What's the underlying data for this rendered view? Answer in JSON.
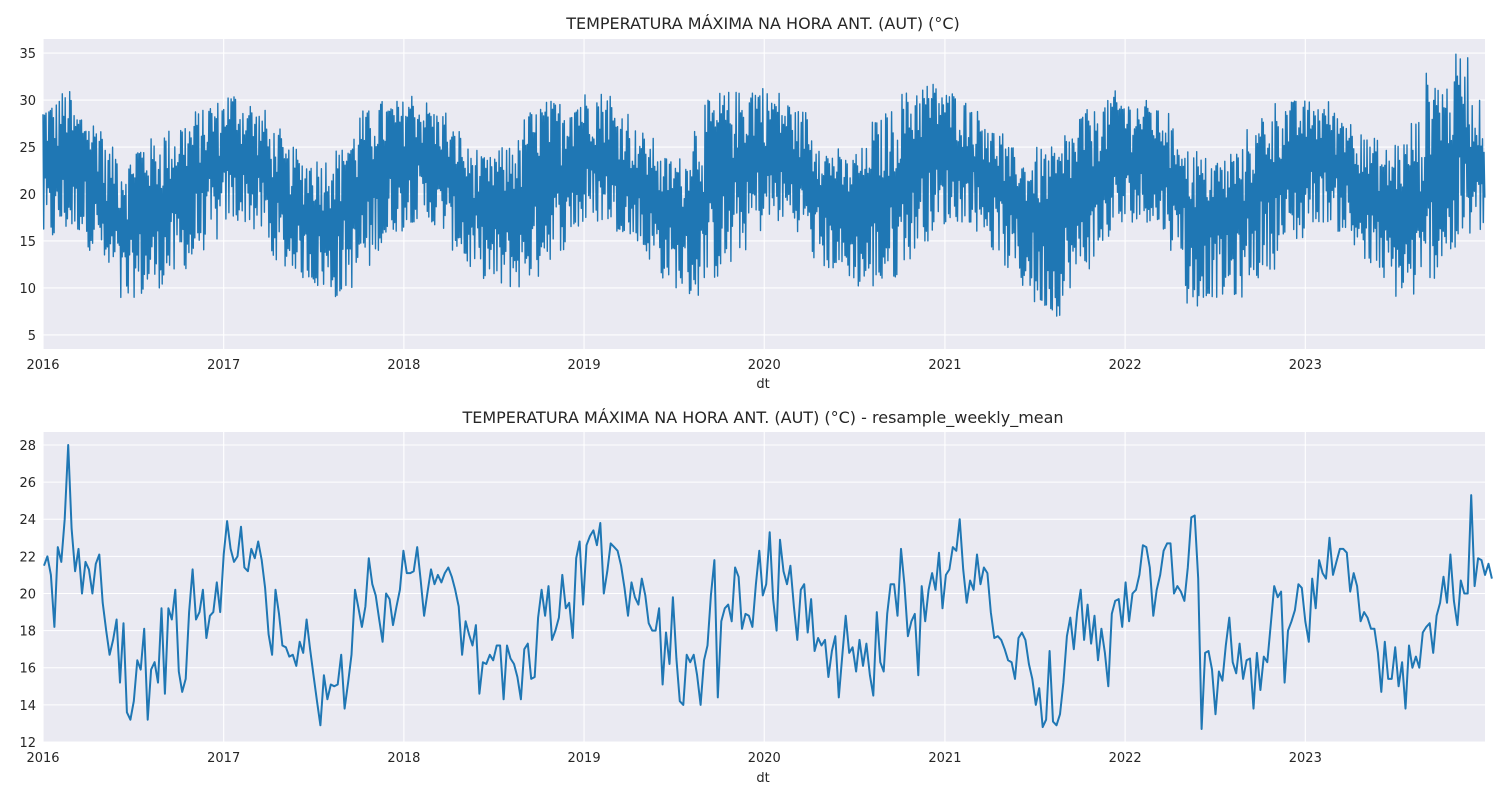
{
  "colors": {
    "line": "#1f77b4",
    "plot_background": "#eaeaf2",
    "grid": "#ffffff",
    "text": "#262626"
  },
  "chart_data": [
    {
      "type": "line",
      "title": "TEMPERATURA MÁXIMA NA HORA ANT. (AUT) (°C)",
      "xlabel": "dt",
      "ylabel": "",
      "x_range": [
        "2016-01-01",
        "2023-12-31"
      ],
      "ylim": [
        3.5,
        36.5
      ],
      "x_tick_labels": [
        "2016",
        "2017",
        "2018",
        "2019",
        "2020",
        "2021",
        "2022",
        "2023"
      ],
      "y_ticks": [
        5,
        10,
        15,
        20,
        25,
        30,
        35
      ],
      "grid": true,
      "legend": "none",
      "series": [
        {
          "frequency": "hourly",
          "note_on_values": "dense hourly series; seasonal envelope shown as monthly typical minimum and maximum",
          "months": [
            "2016-01",
            "2016-02",
            "2016-03",
            "2016-04",
            "2016-05",
            "2016-06",
            "2016-07",
            "2016-08",
            "2016-09",
            "2016-10",
            "2016-11",
            "2016-12",
            "2017-01",
            "2017-02",
            "2017-03",
            "2017-04",
            "2017-05",
            "2017-06",
            "2017-07",
            "2017-08",
            "2017-09",
            "2017-10",
            "2017-11",
            "2017-12",
            "2018-01",
            "2018-02",
            "2018-03",
            "2018-04",
            "2018-05",
            "2018-06",
            "2018-07",
            "2018-08",
            "2018-09",
            "2018-10",
            "2018-11",
            "2018-12",
            "2019-01",
            "2019-02",
            "2019-03",
            "2019-04",
            "2019-05",
            "2019-06",
            "2019-07",
            "2019-08",
            "2019-09",
            "2019-10",
            "2019-11",
            "2019-12",
            "2020-01",
            "2020-02",
            "2020-03",
            "2020-04",
            "2020-05",
            "2020-06",
            "2020-07",
            "2020-08",
            "2020-09",
            "2020-10",
            "2020-11",
            "2020-12",
            "2021-01",
            "2021-02",
            "2021-03",
            "2021-04",
            "2021-05",
            "2021-06",
            "2021-07",
            "2021-08",
            "2021-09",
            "2021-10",
            "2021-11",
            "2021-12",
            "2022-01",
            "2022-02",
            "2022-03",
            "2022-04",
            "2022-05",
            "2022-06",
            "2022-07",
            "2022-08",
            "2022-09",
            "2022-10",
            "2022-11",
            "2022-12",
            "2023-01",
            "2023-02",
            "2023-03",
            "2023-04",
            "2023-05",
            "2023-06",
            "2023-07",
            "2023-08",
            "2023-09",
            "2023-10",
            "2023-11",
            "2023-12"
          ],
          "monthly_min": [
            15,
            16,
            16,
            14,
            11,
            8,
            9,
            10,
            11,
            12,
            14,
            15,
            17,
            17,
            16,
            13,
            12,
            11,
            10,
            9,
            10,
            12,
            14,
            16,
            17,
            17,
            16,
            14,
            12,
            11,
            10,
            10,
            11,
            13,
            14,
            16,
            17,
            17,
            16,
            15,
            13,
            11,
            10,
            9,
            11,
            12,
            14,
            16,
            17,
            17,
            16,
            13,
            12,
            11,
            10,
            10,
            11,
            13,
            15,
            16,
            17,
            17,
            16,
            14,
            12,
            10,
            8,
            7,
            10,
            12,
            14,
            16,
            17,
            17,
            16,
            14,
            8,
            9,
            9,
            9,
            11,
            12,
            14,
            15,
            17,
            17,
            16,
            14,
            12,
            10,
            9,
            9,
            11,
            13,
            15,
            16
          ],
          "monthly_max": [
            30,
            31,
            29,
            28,
            25,
            24,
            26,
            26,
            27,
            28,
            29,
            30,
            31,
            30,
            29,
            27,
            25,
            24,
            24,
            25,
            27,
            29,
            30,
            30,
            31,
            30,
            29,
            27,
            25,
            24,
            25,
            26,
            29,
            30,
            30,
            31,
            31,
            31,
            29,
            27,
            26,
            24,
            24,
            28,
            30,
            31,
            31,
            32,
            31,
            30,
            29,
            27,
            25,
            24,
            25,
            28,
            29,
            31,
            32,
            32,
            31,
            30,
            29,
            27,
            25,
            24,
            25,
            25,
            27,
            29,
            30,
            31,
            30,
            30,
            29,
            27,
            25,
            24,
            24,
            25,
            27,
            29,
            30,
            30,
            30,
            30,
            29,
            28,
            26,
            25,
            26,
            28,
            33,
            32,
            35,
            30
          ]
        }
      ]
    },
    {
      "type": "line",
      "title": "TEMPERATURA MÁXIMA NA HORA ANT. (AUT) (°C) - resample_weekly_mean",
      "xlabel": "dt",
      "ylabel": "",
      "x_range": [
        "2016-01-01",
        "2023-12-31"
      ],
      "ylim": [
        12,
        28.7
      ],
      "x_tick_labels": [
        "2016",
        "2017",
        "2018",
        "2019",
        "2020",
        "2021",
        "2022",
        "2023"
      ],
      "y_ticks": [
        12,
        14,
        16,
        18,
        20,
        22,
        24,
        26,
        28
      ],
      "grid": true,
      "legend": "none",
      "series": [
        {
          "frequency": "weekly",
          "start": "2016-01-03",
          "step_days": 7,
          "values": [
            21.5,
            22.0,
            21.0,
            18.2,
            22.5,
            21.7,
            24.0,
            28.0,
            23.5,
            21.2,
            22.4,
            20.0,
            21.7,
            21.3,
            20.0,
            21.6,
            22.1,
            19.5,
            18.0,
            16.7,
            17.5,
            18.6,
            15.2,
            18.4,
            13.6,
            13.2,
            14.2,
            16.4,
            15.9,
            18.1,
            13.2,
            15.9,
            16.3,
            15.2,
            19.2,
            14.6,
            19.2,
            18.6,
            20.2,
            15.8,
            14.7,
            15.4,
            19.0,
            21.3,
            18.6,
            19.0,
            20.2,
            17.6,
            18.8,
            19.0,
            20.6,
            19.0,
            22.1,
            23.9,
            22.4,
            21.7,
            22.0,
            23.6,
            21.4,
            21.2,
            22.4,
            21.9,
            22.8,
            21.8,
            20.3,
            17.8,
            16.7,
            20.2,
            18.9,
            17.2,
            17.1,
            16.6,
            16.7,
            16.1,
            17.4,
            16.8,
            18.6,
            17.0,
            15.6,
            14.2,
            12.9,
            15.6,
            14.3,
            15.1,
            15.0,
            15.1,
            16.7,
            13.8,
            15.2,
            16.7,
            20.2,
            19.2,
            18.2,
            19.3,
            21.9,
            20.5,
            19.9,
            18.6,
            17.4,
            20.0,
            19.7,
            18.3,
            19.3,
            20.2,
            22.3,
            21.1,
            21.1,
            21.2,
            22.5,
            20.7,
            18.8,
            20.1,
            21.3,
            20.5,
            21.0,
            20.6,
            21.1,
            21.4,
            20.9,
            20.2,
            19.3,
            16.7,
            18.5,
            17.8,
            17.2,
            18.3,
            14.6,
            16.3,
            16.2,
            16.7,
            16.4,
            17.2,
            17.2,
            14.3,
            17.2,
            16.5,
            16.2,
            15.5,
            14.3,
            17.0,
            17.3,
            15.4,
            15.5,
            18.7,
            20.2,
            18.8,
            20.4,
            17.5,
            18.0,
            18.7,
            21.0,
            19.2,
            19.5,
            17.6,
            21.9,
            22.8,
            19.4,
            22.6,
            23.1,
            23.4,
            22.6,
            23.8,
            20.0,
            21.2,
            22.7,
            22.5,
            22.3,
            21.5,
            20.3,
            18.8,
            20.6,
            19.8,
            19.4,
            20.8,
            19.9,
            18.4,
            18.0,
            18.0,
            19.2,
            15.1,
            17.9,
            16.2,
            19.8,
            16.5,
            14.2,
            14.0,
            16.7,
            16.3,
            16.7,
            15.6,
            14.0,
            16.4,
            17.2,
            19.9,
            21.8,
            14.4,
            18.5,
            19.2,
            19.4,
            18.5,
            21.4,
            20.9,
            18.1,
            18.9,
            18.8,
            18.2,
            20.5,
            22.3,
            19.9,
            20.5,
            23.3,
            19.7,
            18.0,
            22.9,
            21.2,
            20.5,
            21.5,
            19.3,
            17.5,
            20.2,
            20.5,
            17.9,
            19.7,
            16.9,
            17.6,
            17.2,
            17.5,
            15.5,
            16.9,
            17.7,
            14.4,
            16.6,
            18.8,
            16.8,
            17.1,
            15.8,
            17.5,
            16.1,
            17.3,
            15.6,
            14.5,
            19.0,
            16.3,
            15.8,
            18.9,
            20.5,
            20.5,
            18.8,
            22.4,
            20.5,
            17.7,
            18.5,
            18.9,
            15.6,
            20.4,
            18.5,
            20.2,
            21.1,
            20.2,
            22.2,
            19.2,
            21.0,
            21.3,
            22.5,
            22.3,
            24.0,
            21.3,
            19.5,
            20.7,
            20.2,
            22.1,
            20.5,
            21.4,
            21.1,
            19.0,
            17.6,
            17.7,
            17.5,
            17.0,
            16.4,
            16.3,
            15.4,
            17.6,
            17.9,
            17.5,
            16.2,
            15.4,
            14.0,
            14.9,
            12.8,
            13.2,
            16.9,
            13.1,
            12.9,
            13.5,
            15.2,
            17.7,
            18.7,
            17.0,
            19.0,
            20.2,
            17.5,
            19.4,
            17.3,
            18.8,
            16.4,
            18.1,
            16.8,
            15.0,
            18.9,
            19.6,
            19.7,
            18.2,
            20.6,
            18.5,
            20.0,
            20.2,
            21.0,
            22.6,
            22.5,
            21.4,
            18.8,
            20.2,
            21.0,
            22.3,
            22.7,
            22.7,
            20.0,
            20.4,
            20.1,
            19.6,
            21.4,
            24.1,
            24.2,
            20.8,
            12.7,
            16.8,
            16.9,
            15.9,
            13.5,
            15.8,
            15.3,
            17.2,
            18.7,
            16.3,
            15.7,
            17.3,
            15.4,
            16.4,
            16.5,
            13.8,
            16.8,
            14.8,
            16.6,
            16.3,
            18.3,
            20.4,
            19.8,
            20.1,
            15.2,
            18.0,
            18.5,
            19.1,
            20.5,
            20.3,
            18.5,
            17.4,
            20.8,
            19.2,
            21.8,
            21.1,
            20.8,
            23.0,
            21.0,
            21.7,
            22.4,
            22.4,
            22.2,
            20.1,
            21.1,
            20.4,
            18.5,
            19.0,
            18.7,
            18.1,
            18.1,
            16.8,
            14.7,
            17.4,
            15.4,
            15.4,
            17.1,
            15.0,
            16.3,
            13.8,
            17.2,
            16.0,
            16.6,
            16.0,
            17.9,
            18.2,
            18.4,
            16.8,
            18.8,
            19.5,
            20.9,
            19.5,
            22.1,
            19.6,
            18.3,
            20.7,
            20.0,
            20.0,
            25.3,
            20.4,
            21.9,
            21.8,
            21.0,
            21.6,
            20.8
          ]
        }
      ]
    }
  ]
}
